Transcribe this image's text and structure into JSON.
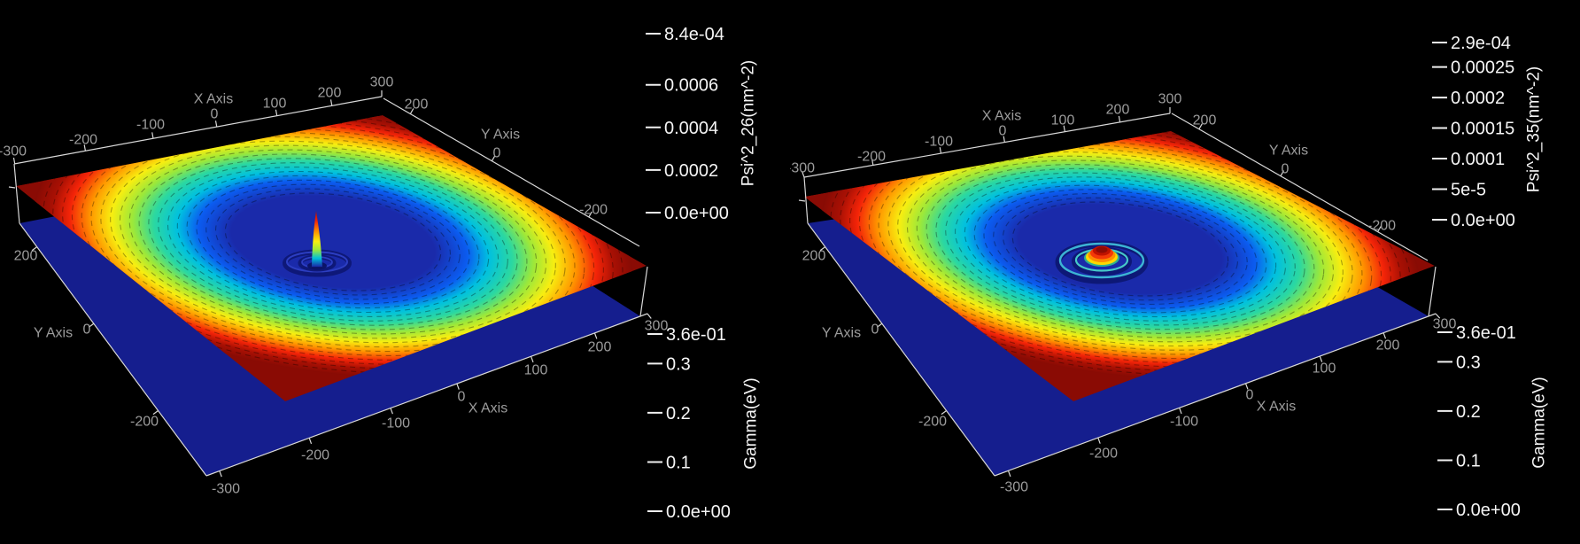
{
  "colors": {
    "background": "#000000",
    "axis_text": "#9c9c9c",
    "colorbar_text": "#f5f5f5",
    "axis_line": "#d8d8d8",
    "surface_edge_color": "#8a0b04",
    "base_plane_color": "#151e8e",
    "colorbar_stops_top_to_bottom": [
      [
        "0",
        "#870b04"
      ],
      [
        "0.08",
        "#c21104"
      ],
      [
        "0.16",
        "#f42a08"
      ],
      [
        "0.24",
        "#ff7a00"
      ],
      [
        "0.32",
        "#ffc400"
      ],
      [
        "0.4",
        "#f4f000"
      ],
      [
        "0.48",
        "#a6e830"
      ],
      [
        "0.56",
        "#42dc96"
      ],
      [
        "0.64",
        "#00d2d2"
      ],
      [
        "0.72",
        "#00a0f0"
      ],
      [
        "0.8",
        "#0060ff"
      ],
      [
        "0.88",
        "#0028e0"
      ],
      [
        "0.95",
        "#0d16a8"
      ],
      [
        "1",
        "#111690"
      ]
    ],
    "surface_radial_stops": [
      [
        "0",
        "#1a2aaa"
      ],
      [
        "0.34",
        "#1a2aaa"
      ],
      [
        "0.45",
        "#0b5cf0"
      ],
      [
        "0.52",
        "#00c0e0"
      ],
      [
        "0.6",
        "#2cd8a0"
      ],
      [
        "0.67",
        "#9ce83a"
      ],
      [
        "0.74",
        "#f8ee10"
      ],
      [
        "0.81",
        "#ff9800"
      ],
      [
        "0.88",
        "#f42408"
      ],
      [
        "0.94",
        "#a81004"
      ],
      [
        "1",
        "#870b04"
      ]
    ],
    "spike_stops": [
      [
        "0",
        "#a81004"
      ],
      [
        "0.18",
        "#f42408"
      ],
      [
        "0.38",
        "#ff9800"
      ],
      [
        "0.55",
        "#f8ee10"
      ],
      [
        "0.7",
        "#9ce83a"
      ],
      [
        "0.85",
        "#00c0d8"
      ],
      [
        "1",
        "#1a2aaa"
      ]
    ]
  },
  "chart_data": [
    {
      "type": "surface",
      "panel": "left",
      "x_axis": {
        "title": "X Axis",
        "range": [
          -300,
          300
        ],
        "tick_labels": [
          "-300",
          "-200",
          "-100",
          "0",
          "100",
          "200",
          "300"
        ]
      },
      "y_axis": {
        "title": "Y Axis",
        "range": [
          -300,
          300
        ],
        "tick_labels": [
          "200",
          "0",
          "-200"
        ]
      },
      "colorbars": [
        {
          "title": "Psi^2_26(nm^-2)",
          "min": 0.0,
          "max": 0.00084,
          "tick_labels": [
            "8.4e-04",
            "0.0006",
            "0.0004",
            "0.0002",
            "0.0e+00"
          ],
          "tick_values": [
            0.00084,
            0.0006,
            0.0004,
            0.0002,
            0.0
          ]
        },
        {
          "title": "Gamma(eV)",
          "min": 0.0,
          "max": 0.36,
          "tick_labels": [
            "3.6e-01",
            "0.3",
            "0.2",
            "0.1",
            "0.0e+00"
          ],
          "tick_values": [
            0.36,
            0.3,
            0.2,
            0.1,
            0.0
          ]
        }
      ],
      "feature_kind": "spike",
      "surface_shape": "high (dark red) at domain edges descending through rainbow contour rings to a blue basin with a sharp central spike surrounded by two small concentric rings",
      "base_plane": "flat dark blue plane below surface"
    },
    {
      "type": "surface",
      "panel": "right",
      "x_axis": {
        "title": "X Axis",
        "range": [
          -300,
          300
        ],
        "tick_labels": [
          "-300",
          "-200",
          "-100",
          "0",
          "100",
          "200",
          "300"
        ]
      },
      "y_axis": {
        "title": "Y Axis",
        "range": [
          -300,
          300
        ],
        "tick_labels": [
          "200",
          "0",
          "-200"
        ]
      },
      "colorbars": [
        {
          "title": "Psi^2_35(nm^-2)",
          "min": 0.0,
          "max": 0.00029,
          "tick_labels": [
            "2.9e-04",
            "0.00025",
            "0.0002",
            "0.00015",
            "0.0001",
            "5e-5",
            "0.0e+00"
          ],
          "tick_values": [
            0.00029,
            0.00025,
            0.0002,
            0.00015,
            0.0001,
            5e-05,
            0.0
          ]
        },
        {
          "title": "Gamma(eV)",
          "min": 0.0,
          "max": 0.36,
          "tick_labels": [
            "3.6e-01",
            "0.3",
            "0.2",
            "0.1",
            "0.0e+00"
          ],
          "tick_values": [
            0.36,
            0.3,
            0.2,
            0.1,
            0.0
          ]
        }
      ],
      "feature_kind": "dome",
      "surface_shape": "high (dark red) at domain edges descending through rainbow contour rings to a blue basin with a low red-capped dome surrounded by two cyan concentric rings",
      "base_plane": "flat dark blue plane below surface"
    }
  ]
}
